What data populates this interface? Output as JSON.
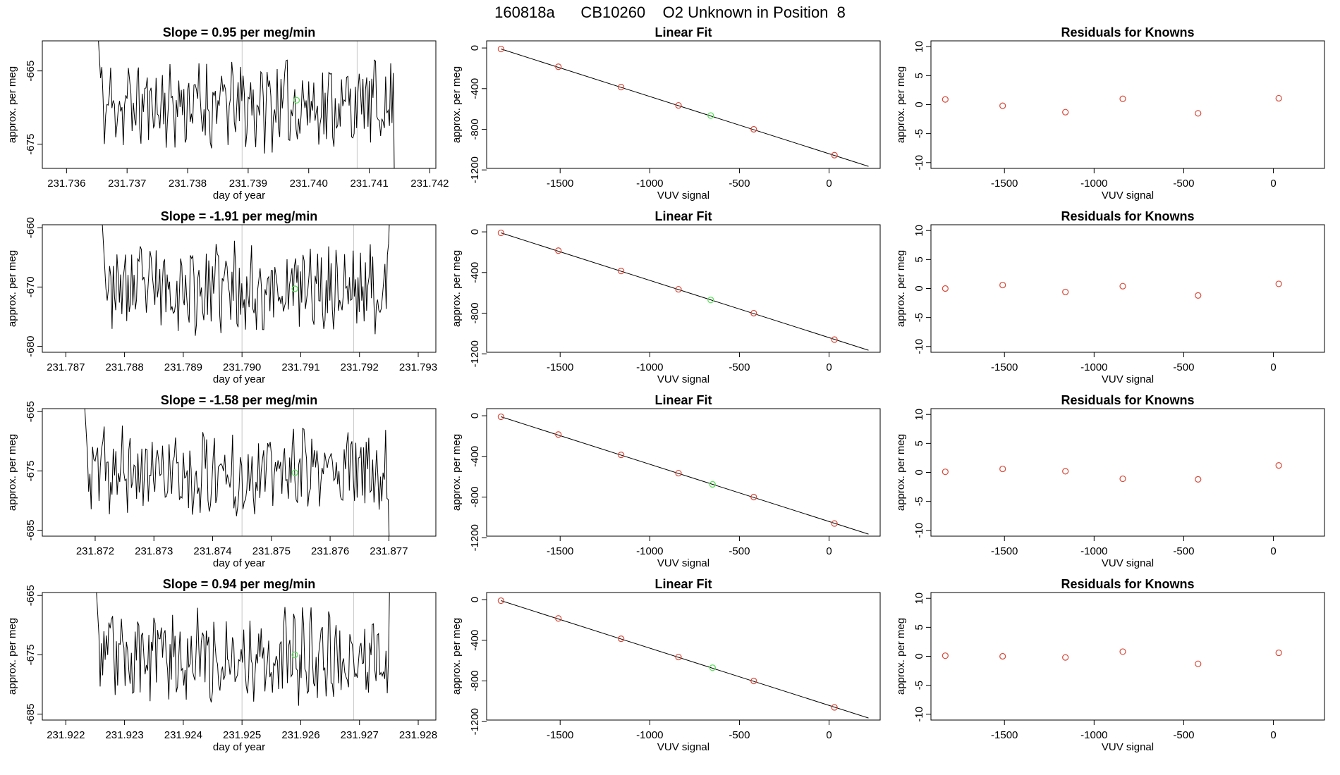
{
  "page_title": "160818a      CB10260    O2 Unknown in Position  8",
  "colors": {
    "trace": "#000000",
    "known_point": "#d94a3a",
    "unknown_point": "#5fe05f",
    "vline": "#c8c8c8",
    "fit_line": "#000000"
  },
  "chart_data": [
    {
      "type": "line",
      "row": 0,
      "panel": "timeseries",
      "title": "Slope =  0.95  per meg/min",
      "xlabel": "day of year",
      "ylabel": "approx. per meg",
      "xlim": [
        231.7356,
        231.7421
      ],
      "ylim": [
        -678.3,
        -660.9
      ],
      "x_ticks": [
        "231.736",
        "231.737",
        "231.738",
        "231.739",
        "231.740",
        "231.741",
        "231.742"
      ],
      "x_tick_values": [
        231.736,
        231.737,
        231.738,
        231.739,
        231.74,
        231.741,
        231.742
      ],
      "y_ticks": [
        "-665",
        "-675"
      ],
      "y_tick_values": [
        -665,
        -675
      ],
      "series_x_range": [
        231.7365,
        231.7415
      ],
      "seed": 11,
      "highlight": {
        "x": 231.7398,
        "y": -669.0
      },
      "vlines": [
        231.7389,
        231.7408
      ]
    },
    {
      "type": "scatter",
      "row": 0,
      "panel": "linear_fit",
      "title": "Linear Fit",
      "xlabel": "VUV signal",
      "ylabel": "approx. per meg",
      "xlim": [
        -1910,
        285
      ],
      "ylim": [
        -1185,
        70
      ],
      "x_ticks": [
        "-1500",
        "-1000",
        "-500",
        "0"
      ],
      "x_tick_values": [
        -1500,
        -1000,
        -500,
        0
      ],
      "y_ticks": [
        "0",
        "-400",
        "-800",
        "-1200"
      ],
      "y_tick_values": [
        0,
        -400,
        -800,
        -1200
      ],
      "known_points": [
        {
          "x": -1830,
          "y": -10
        },
        {
          "x": -1510,
          "y": -185
        },
        {
          "x": -1160,
          "y": -385
        },
        {
          "x": -840,
          "y": -565
        },
        {
          "x": -420,
          "y": -800
        },
        {
          "x": 30,
          "y": -1055
        }
      ],
      "unknown_point": {
        "x": -660,
        "y": -665
      },
      "fit_line": {
        "x0": -1830,
        "y0": -10,
        "x1": 220,
        "y1": -1165
      }
    },
    {
      "type": "scatter",
      "row": 0,
      "panel": "residuals",
      "title": "Residuals for Knowns",
      "xlabel": "VUV signal",
      "ylabel": "approx. per meg",
      "xlim": [
        -1910,
        285
      ],
      "ylim": [
        -11,
        11
      ],
      "x_ticks": [
        "-1500",
        "-1000",
        "-500",
        "0"
      ],
      "x_tick_values": [
        -1500,
        -1000,
        -500,
        0
      ],
      "y_ticks": [
        "10",
        "5",
        "0",
        "-5",
        "-10"
      ],
      "y_tick_values": [
        10,
        5,
        0,
        -5,
        -10
      ],
      "points": [
        {
          "x": -1830,
          "y": 0.9
        },
        {
          "x": -1510,
          "y": -0.2
        },
        {
          "x": -1160,
          "y": -1.3
        },
        {
          "x": -840,
          "y": 1.0
        },
        {
          "x": -420,
          "y": -1.5
        },
        {
          "x": 30,
          "y": 1.1
        }
      ]
    },
    {
      "type": "line",
      "row": 1,
      "panel": "timeseries",
      "title": "Slope =  -1.91  per meg/min",
      "xlabel": "day of year",
      "ylabel": "approx. per meg",
      "xlim": [
        231.7866,
        231.7933
      ],
      "ylim": [
        -681,
        -659.5
      ],
      "x_ticks": [
        "231.787",
        "231.788",
        "231.789",
        "231.790",
        "231.791",
        "231.792",
        "231.793"
      ],
      "x_tick_values": [
        231.787,
        231.788,
        231.789,
        231.79,
        231.791,
        231.792,
        231.793
      ],
      "y_ticks": [
        "-660",
        "-670",
        "-680"
      ],
      "y_tick_values": [
        -660,
        -670,
        -680
      ],
      "series_x_range": [
        231.7876,
        231.7926
      ],
      "seed": 23,
      "highlight": {
        "x": 231.7909,
        "y": -670.3
      },
      "vlines": [
        231.79,
        231.7919
      ]
    },
    {
      "type": "scatter",
      "row": 1,
      "panel": "linear_fit",
      "title": "Linear Fit",
      "xlabel": "VUV signal",
      "ylabel": "approx. per meg",
      "xlim": [
        -1910,
        285
      ],
      "ylim": [
        -1185,
        70
      ],
      "x_ticks": [
        "-1500",
        "-1000",
        "-500",
        "0"
      ],
      "x_tick_values": [
        -1500,
        -1000,
        -500,
        0
      ],
      "y_ticks": [
        "0",
        "-400",
        "-800",
        "-1200"
      ],
      "y_tick_values": [
        0,
        -400,
        -800,
        -1200
      ],
      "known_points": [
        {
          "x": -1830,
          "y": -10
        },
        {
          "x": -1510,
          "y": -185
        },
        {
          "x": -1160,
          "y": -385
        },
        {
          "x": -840,
          "y": -565
        },
        {
          "x": -420,
          "y": -800
        },
        {
          "x": 30,
          "y": -1060
        }
      ],
      "unknown_point": {
        "x": -660,
        "y": -670
      },
      "fit_line": {
        "x0": -1830,
        "y0": -10,
        "x1": 220,
        "y1": -1165
      }
    },
    {
      "type": "scatter",
      "row": 1,
      "panel": "residuals",
      "title": "Residuals for Knowns",
      "xlabel": "VUV signal",
      "ylabel": "approx. per meg",
      "xlim": [
        -1910,
        285
      ],
      "ylim": [
        -11,
        11
      ],
      "x_ticks": [
        "-1500",
        "-1000",
        "-500",
        "0"
      ],
      "x_tick_values": [
        -1500,
        -1000,
        -500,
        0
      ],
      "y_ticks": [
        "10",
        "5",
        "0",
        "-5",
        "-10"
      ],
      "y_tick_values": [
        10,
        5,
        0,
        -5,
        -10
      ],
      "points": [
        {
          "x": -1830,
          "y": 0.0
        },
        {
          "x": -1510,
          "y": 0.6
        },
        {
          "x": -1160,
          "y": -0.6
        },
        {
          "x": -840,
          "y": 0.4
        },
        {
          "x": -420,
          "y": -1.2
        },
        {
          "x": 30,
          "y": 0.8
        }
      ]
    },
    {
      "type": "line",
      "row": 2,
      "panel": "timeseries",
      "title": "Slope =  -1.58  per meg/min",
      "xlabel": "day of year",
      "ylabel": "approx. per meg",
      "xlim": [
        231.8711,
        231.8778
      ],
      "ylim": [
        -686,
        -664.5
      ],
      "x_ticks": [
        "231.872",
        "231.873",
        "231.874",
        "231.875",
        "231.876",
        "231.877"
      ],
      "x_tick_values": [
        231.872,
        231.873,
        231.874,
        231.875,
        231.876,
        231.877
      ],
      "y_ticks": [
        "-665",
        "-675",
        "-685"
      ],
      "y_tick_values": [
        -665,
        -675,
        -685
      ],
      "series_x_range": [
        231.8718,
        231.8771
      ],
      "seed": 37,
      "highlight": {
        "x": 231.8754,
        "y": -675.3
      },
      "vlines": [
        231.8745,
        231.8764
      ]
    },
    {
      "type": "scatter",
      "row": 2,
      "panel": "linear_fit",
      "title": "Linear Fit",
      "xlabel": "VUV signal",
      "ylabel": "approx. per meg",
      "xlim": [
        -1910,
        285
      ],
      "ylim": [
        -1185,
        70
      ],
      "x_ticks": [
        "-1500",
        "-1000",
        "-500",
        "0"
      ],
      "x_tick_values": [
        -1500,
        -1000,
        -500,
        0
      ],
      "y_ticks": [
        "0",
        "-400",
        "-800",
        "-1200"
      ],
      "y_tick_values": [
        0,
        -400,
        -800,
        -1200
      ],
      "known_points": [
        {
          "x": -1830,
          "y": -10
        },
        {
          "x": -1510,
          "y": -185
        },
        {
          "x": -1160,
          "y": -385
        },
        {
          "x": -840,
          "y": -565
        },
        {
          "x": -420,
          "y": -800
        },
        {
          "x": 30,
          "y": -1060
        }
      ],
      "unknown_point": {
        "x": -650,
        "y": -675
      },
      "fit_line": {
        "x0": -1830,
        "y0": -10,
        "x1": 220,
        "y1": -1165
      }
    },
    {
      "type": "scatter",
      "row": 2,
      "panel": "residuals",
      "title": "Residuals for Knowns",
      "xlabel": "VUV signal",
      "ylabel": "approx. per meg",
      "xlim": [
        -1910,
        285
      ],
      "ylim": [
        -11,
        11
      ],
      "x_ticks": [
        "-1500",
        "-1000",
        "-500",
        "0"
      ],
      "x_tick_values": [
        -1500,
        -1000,
        -500,
        0
      ],
      "y_ticks": [
        "10",
        "5",
        "0",
        "-5",
        "-10"
      ],
      "y_tick_values": [
        10,
        5,
        0,
        -5,
        -10
      ],
      "points": [
        {
          "x": -1830,
          "y": 0.1
        },
        {
          "x": -1510,
          "y": 0.6
        },
        {
          "x": -1160,
          "y": 0.2
        },
        {
          "x": -840,
          "y": -1.1
        },
        {
          "x": -420,
          "y": -1.2
        },
        {
          "x": 30,
          "y": 1.2
        }
      ]
    },
    {
      "type": "line",
      "row": 3,
      "panel": "timeseries",
      "title": "Slope =  0.94  per meg/min",
      "xlabel": "day of year",
      "ylabel": "approx. per meg",
      "xlim": [
        231.9216,
        231.9283
      ],
      "ylim": [
        -686,
        -664.5
      ],
      "x_ticks": [
        "231.922",
        "231.923",
        "231.924",
        "231.925",
        "231.926",
        "231.927",
        "231.928"
      ],
      "x_tick_values": [
        231.922,
        231.923,
        231.924,
        231.925,
        231.926,
        231.927,
        231.928
      ],
      "y_ticks": [
        "-665",
        "-675",
        "-685"
      ],
      "y_tick_values": [
        -665,
        -675,
        -685
      ],
      "series_x_range": [
        231.9225,
        231.9276
      ],
      "seed": 53,
      "highlight": {
        "x": 231.9259,
        "y": -675.0
      },
      "vlines": [
        231.925,
        231.9269
      ]
    },
    {
      "type": "scatter",
      "row": 3,
      "panel": "linear_fit",
      "title": "Linear Fit",
      "xlabel": "VUV signal",
      "ylabel": "approx. per meg",
      "xlim": [
        -1910,
        285
      ],
      "ylim": [
        -1185,
        70
      ],
      "x_ticks": [
        "-1500",
        "-1000",
        "-500",
        "0"
      ],
      "x_tick_values": [
        -1500,
        -1000,
        -500,
        0
      ],
      "y_ticks": [
        "0",
        "-400",
        "-800",
        "-1200"
      ],
      "y_tick_values": [
        0,
        -400,
        -800,
        -1200
      ],
      "known_points": [
        {
          "x": -1830,
          "y": -10
        },
        {
          "x": -1510,
          "y": -185
        },
        {
          "x": -1160,
          "y": -385
        },
        {
          "x": -840,
          "y": -565
        },
        {
          "x": -420,
          "y": -800
        },
        {
          "x": 30,
          "y": -1060
        }
      ],
      "unknown_point": {
        "x": -650,
        "y": -670
      },
      "fit_line": {
        "x0": -1830,
        "y0": -10,
        "x1": 220,
        "y1": -1165
      }
    },
    {
      "type": "scatter",
      "row": 3,
      "panel": "residuals",
      "title": "Residuals for Knowns",
      "xlabel": "VUV signal",
      "ylabel": "approx. per meg",
      "xlim": [
        -1910,
        285
      ],
      "ylim": [
        -11,
        11
      ],
      "x_ticks": [
        "-1500",
        "-1000",
        "-500",
        "0"
      ],
      "x_tick_values": [
        -1500,
        -1000,
        -500,
        0
      ],
      "y_ticks": [
        "10",
        "5",
        "0",
        "-5",
        "-10"
      ],
      "y_tick_values": [
        10,
        5,
        0,
        -5,
        -10
      ],
      "points": [
        {
          "x": -1830,
          "y": 0.1
        },
        {
          "x": -1510,
          "y": 0.0
        },
        {
          "x": -1160,
          "y": -0.2
        },
        {
          "x": -840,
          "y": 0.8
        },
        {
          "x": -420,
          "y": -1.3
        },
        {
          "x": 30,
          "y": 0.6
        }
      ]
    }
  ]
}
